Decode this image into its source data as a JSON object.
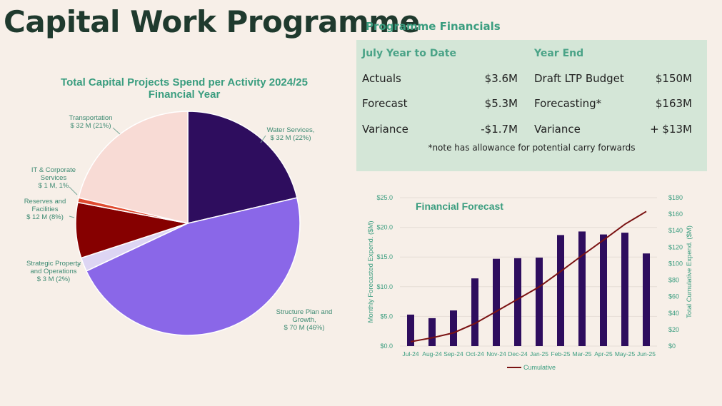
{
  "page": {
    "title": "Capital Work Programme",
    "subtitle": "Programme Financials"
  },
  "financials": {
    "ytd_header": "July Year to Date",
    "ye_header": "Year End",
    "ytd": [
      {
        "label": "Actuals",
        "value": "$3.6M"
      },
      {
        "label": "Forecast",
        "value": "$5.3M"
      },
      {
        "label": "Variance",
        "value": "-$1.7M"
      }
    ],
    "ye": [
      {
        "label": "Draft LTP Budget",
        "value": "$150M"
      },
      {
        "label": "Forecasting*",
        "value": "$163M"
      },
      {
        "label": "Variance",
        "value": "+ $13M"
      }
    ],
    "note": "*note has allowance for potential carry forwards"
  },
  "colors": {
    "title": "#1f3a2e",
    "accent": "#3a9d7f",
    "panel_bg": "#d4e6d7",
    "bar": "#2e0d5e",
    "cumulative_line": "#7a1212",
    "page_bg": "#f7efe8"
  },
  "chart_data": [
    {
      "type": "pie",
      "title": "Total Capital Projects Spend per Activity 2024/25 Financial Year",
      "slices": [
        {
          "name": "Water Services,",
          "value": 32,
          "label": "$ 32 M (22%)",
          "color": "#2e0d5e"
        },
        {
          "name": "Structure Plan and Growth,",
          "value": 70,
          "label": "$ 70 M (46%)",
          "color": "#8a67e8"
        },
        {
          "name": "Strategic Property and Operations",
          "value": 3,
          "label": "$ 3 M (2%)",
          "color": "#ddd5f3"
        },
        {
          "name": "Reserves and Facilities",
          "value": 12,
          "label": "$ 12 M (8%)",
          "color": "#860000"
        },
        {
          "name": "IT & Corporate Services",
          "value": 1,
          "label": "$ 1 M, 1%",
          "color": "#e04a2f"
        },
        {
          "name": "Transportation",
          "value": 32,
          "label": "$ 32 M (21%)",
          "color": "#f8dbd5"
        }
      ]
    },
    {
      "type": "bar",
      "title": "Financial Forecast",
      "categories": [
        "Jul-24",
        "Aug-24",
        "Sep-24",
        "Oct-24",
        "Nov-24",
        "Dec-24",
        "Jan-25",
        "Feb-25",
        "Mar-25",
        "Apr-25",
        "May-25",
        "Jun-25"
      ],
      "ylabel": "Monthly Forecasted Expend. ($M)",
      "y2label": "Total Cumulative Expend. ($M)",
      "ylim": [
        0,
        25
      ],
      "y2lim": [
        0,
        180
      ],
      "yticks": [
        "$0.0",
        "$5.0",
        "$10.0",
        "$15.0",
        "$20.0",
        "$25.0"
      ],
      "y2ticks": [
        "$0",
        "$20",
        "$40",
        "$60",
        "$80",
        "$100",
        "$120",
        "$140",
        "$160",
        "$180"
      ],
      "series": [
        {
          "values": [
            5.3,
            4.7,
            6.0,
            11.4,
            14.7,
            14.8,
            14.9,
            18.7,
            19.3,
            18.8,
            19.1,
            15.6
          ]
        },
        {
          "name": "Cumulative",
          "axis": "right",
          "values": [
            5.3,
            10.0,
            16.0,
            27.4,
            42.1,
            56.9,
            71.8,
            90.5,
            109.8,
            128.6,
            147.7,
            163.3
          ]
        }
      ],
      "legend": "bottom"
    }
  ]
}
